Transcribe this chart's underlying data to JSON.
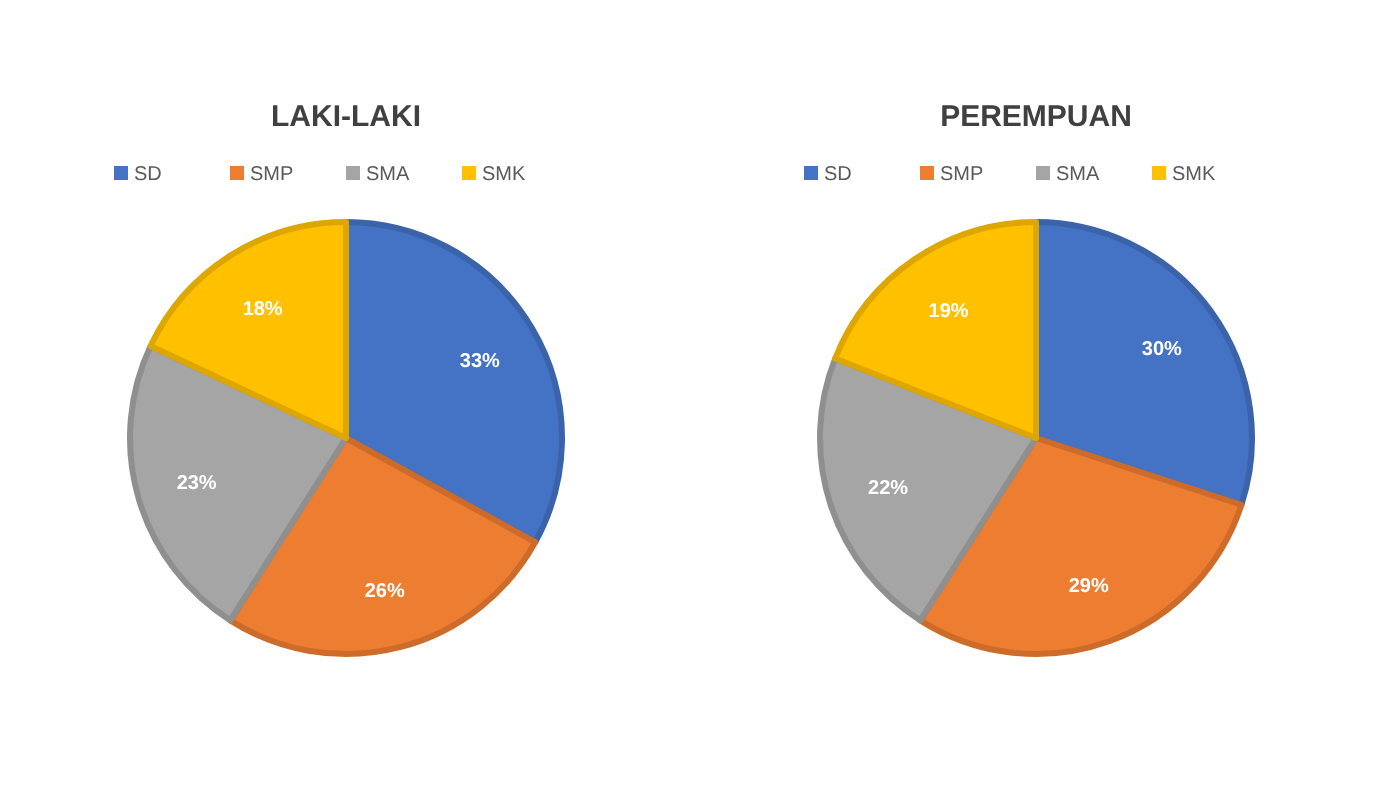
{
  "chart_data": [
    {
      "type": "pie",
      "title": "LAKI-LAKI",
      "categories": [
        "SD",
        "SMP",
        "SMA",
        "SMK"
      ],
      "values": [
        33,
        26,
        23,
        18
      ],
      "value_labels": [
        "33%",
        "26%",
        "23%",
        "18%"
      ],
      "colors": [
        "#4472c4",
        "#ed7d31",
        "#a5a5a5",
        "#ffc000"
      ],
      "legend": "top"
    },
    {
      "type": "pie",
      "title": "PEREMPUAN",
      "categories": [
        "SD",
        "SMP",
        "SMA",
        "SMK"
      ],
      "values": [
        30,
        29,
        22,
        19
      ],
      "value_labels": [
        "30%",
        "29%",
        "22%",
        "19%"
      ],
      "colors": [
        "#4472c4",
        "#ed7d31",
        "#a5a5a5",
        "#ffc000"
      ],
      "legend": "top"
    }
  ]
}
